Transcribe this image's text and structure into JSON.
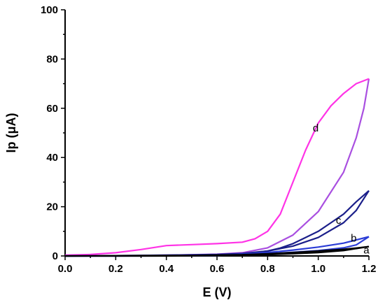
{
  "chart_data": {
    "type": "line",
    "xlabel": "E (V)",
    "ylabel": "Ip (μA)",
    "xlim": [
      0.0,
      1.2
    ],
    "ylim": [
      0,
      100
    ],
    "x_ticks": [
      "0.0",
      "0.2",
      "0.4",
      "0.6",
      "0.8",
      "1.0",
      "1.2"
    ],
    "y_ticks": [
      "0",
      "20",
      "40",
      "60",
      "80",
      "100"
    ],
    "grid": false,
    "legend": "none",
    "series": [
      {
        "name": "d",
        "color_forward": "#a94fe0",
        "color_reverse": "#ff33e6",
        "forward": [
          [
            0.0,
            0.0
          ],
          [
            0.1,
            0.0
          ],
          [
            0.2,
            0.1
          ],
          [
            0.3,
            0.2
          ],
          [
            0.4,
            0.3
          ],
          [
            0.5,
            0.5
          ],
          [
            0.6,
            0.7
          ],
          [
            0.7,
            1.3
          ],
          [
            0.8,
            3.3
          ],
          [
            0.9,
            8.5
          ],
          [
            1.0,
            18.0
          ],
          [
            1.1,
            34.0
          ],
          [
            1.15,
            48.0
          ],
          [
            1.18,
            60.0
          ],
          [
            1.2,
            72.0
          ]
        ],
        "reverse": [
          [
            1.2,
            72.0
          ],
          [
            1.15,
            70.0
          ],
          [
            1.1,
            66.0
          ],
          [
            1.05,
            61.0
          ],
          [
            1.0,
            54.0
          ],
          [
            0.95,
            43.0
          ],
          [
            0.9,
            30.0
          ],
          [
            0.85,
            17.0
          ],
          [
            0.8,
            10.0
          ],
          [
            0.75,
            7.0
          ],
          [
            0.7,
            5.6
          ],
          [
            0.6,
            5.0
          ],
          [
            0.5,
            4.6
          ],
          [
            0.4,
            4.2
          ],
          [
            0.3,
            2.6
          ],
          [
            0.2,
            1.3
          ],
          [
            0.1,
            0.6
          ],
          [
            0.0,
            0.3
          ]
        ]
      },
      {
        "name": "c",
        "color_forward": "#1b1f8a",
        "color_reverse": "#1b1f8a",
        "forward": [
          [
            0.0,
            0.0
          ],
          [
            0.2,
            0.0
          ],
          [
            0.4,
            0.1
          ],
          [
            0.6,
            0.3
          ],
          [
            0.7,
            0.8
          ],
          [
            0.8,
            2.0
          ],
          [
            0.9,
            4.0
          ],
          [
            1.0,
            7.5
          ],
          [
            1.1,
            13.5
          ],
          [
            1.15,
            18.5
          ],
          [
            1.2,
            26.5
          ]
        ],
        "reverse": [
          [
            1.2,
            26.5
          ],
          [
            1.15,
            22.0
          ],
          [
            1.1,
            17.0
          ],
          [
            1.05,
            13.5
          ],
          [
            1.0,
            10.0
          ],
          [
            0.95,
            7.5
          ],
          [
            0.9,
            5.0
          ],
          [
            0.85,
            3.2
          ],
          [
            0.8,
            2.0
          ],
          [
            0.7,
            1.0
          ],
          [
            0.6,
            0.6
          ],
          [
            0.4,
            0.3
          ],
          [
            0.2,
            0.1
          ],
          [
            0.0,
            0.0
          ]
        ]
      },
      {
        "name": "b",
        "color_forward": "#2c3dd6",
        "color_reverse": "#2c3dd6",
        "forward": [
          [
            0.0,
            0.0
          ],
          [
            0.3,
            0.0
          ],
          [
            0.6,
            0.1
          ],
          [
            0.7,
            0.4
          ],
          [
            0.8,
            0.9
          ],
          [
            0.9,
            1.5
          ],
          [
            1.0,
            2.2
          ],
          [
            1.1,
            3.3
          ],
          [
            1.15,
            4.5
          ],
          [
            1.2,
            7.8
          ]
        ],
        "reverse": [
          [
            1.2,
            7.8
          ],
          [
            1.15,
            6.5
          ],
          [
            1.1,
            5.2
          ],
          [
            1.0,
            3.6
          ],
          [
            0.9,
            2.4
          ],
          [
            0.8,
            1.4
          ],
          [
            0.7,
            0.7
          ],
          [
            0.6,
            0.3
          ],
          [
            0.3,
            0.1
          ],
          [
            0.0,
            0.0
          ]
        ]
      },
      {
        "name": "a",
        "color_forward": "#000000",
        "color_reverse": "#000000",
        "forward": [
          [
            0.0,
            0.0
          ],
          [
            0.4,
            0.0
          ],
          [
            0.7,
            0.2
          ],
          [
            0.8,
            0.5
          ],
          [
            0.9,
            0.9
          ],
          [
            1.0,
            1.4
          ],
          [
            1.1,
            2.2
          ],
          [
            1.2,
            3.8
          ]
        ],
        "reverse": [
          [
            1.2,
            3.8
          ],
          [
            1.15,
            3.2
          ],
          [
            1.1,
            2.7
          ],
          [
            1.0,
            2.0
          ],
          [
            0.9,
            1.4
          ],
          [
            0.8,
            0.9
          ],
          [
            0.7,
            0.5
          ],
          [
            0.5,
            0.2
          ],
          [
            0.0,
            0.0
          ]
        ]
      }
    ],
    "labels": [
      {
        "text": "d",
        "x": 0.99,
        "y": 50.5
      },
      {
        "text": "c",
        "x": 1.08,
        "y": 13.0
      },
      {
        "text": "b",
        "x": 1.14,
        "y": 5.8
      },
      {
        "text": "a",
        "x": 1.19,
        "y": 1.0
      }
    ]
  }
}
